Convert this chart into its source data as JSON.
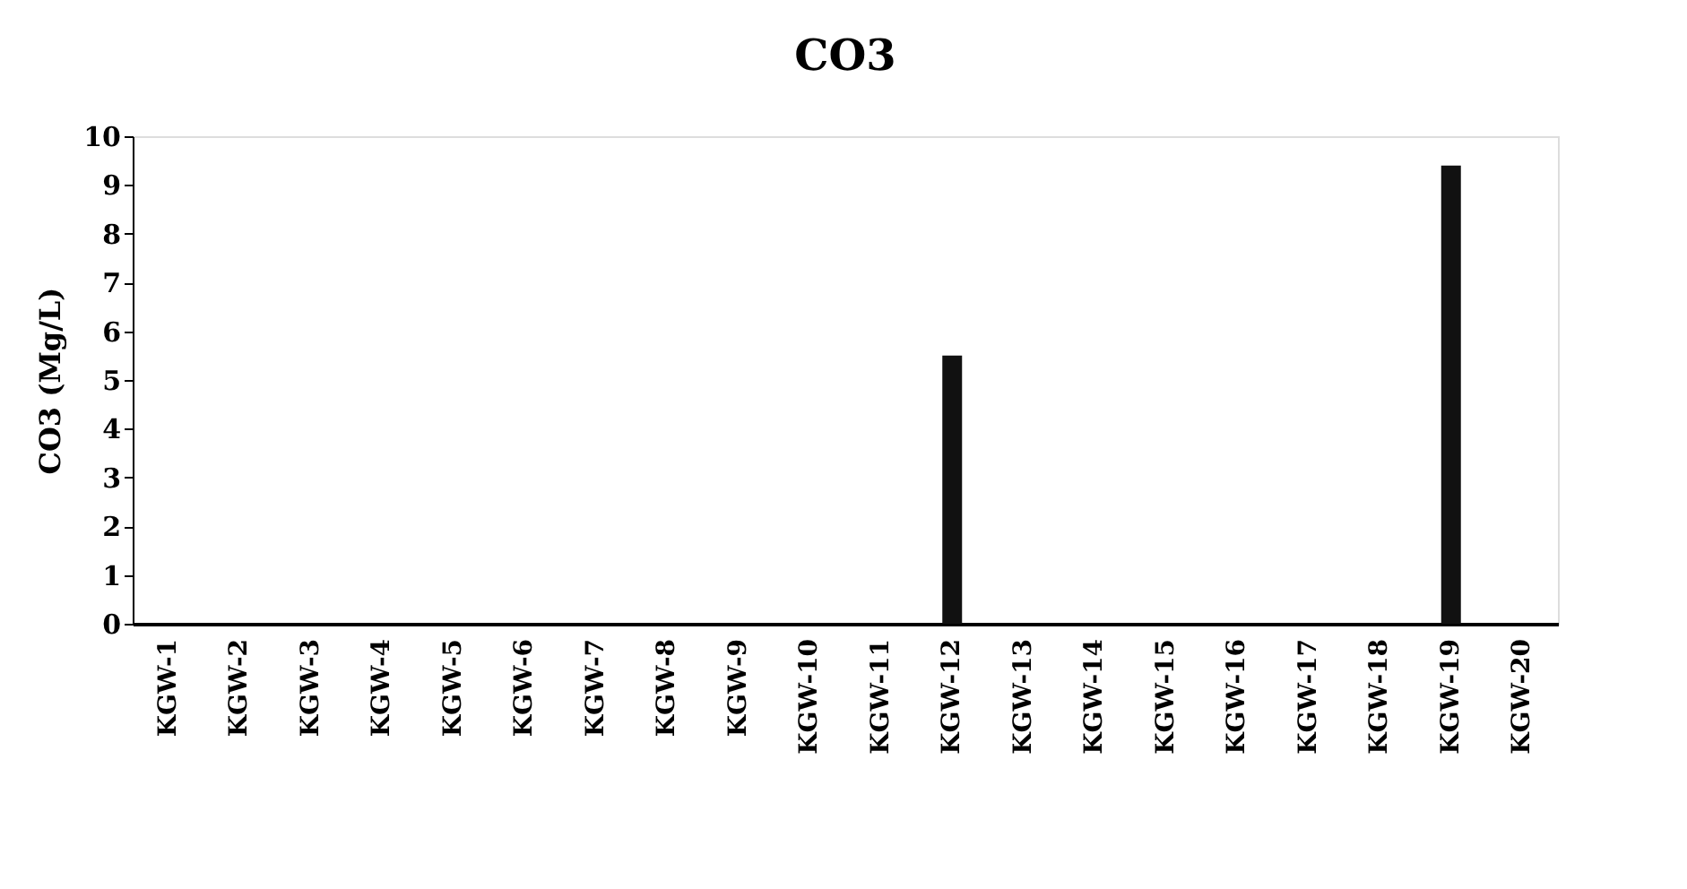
{
  "chart_data": {
    "type": "bar",
    "title": "CO3",
    "ylabel": "CO3 (Mg/L)",
    "categories": [
      "KGW-1",
      "KGW-2",
      "KGW-3",
      "KGW-4",
      "KGW-5",
      "KGW-6",
      "KGW-7",
      "KGW-8",
      "KGW-9",
      "KGW-10",
      "KGW-11",
      "KGW-12",
      "KGW-13",
      "KGW-14",
      "KGW-15",
      "KGW-16",
      "KGW-17",
      "KGW-18",
      "KGW-19",
      "KGW-20"
    ],
    "values": [
      0,
      0,
      0,
      0,
      0,
      0,
      0,
      0,
      0,
      0,
      0,
      5.5,
      0,
      0,
      0,
      0,
      0,
      0,
      9.4,
      0
    ],
    "color": "#111111",
    "ylim": [
      0,
      10
    ],
    "yticks": [
      0,
      1,
      2,
      3,
      4,
      5,
      6,
      7,
      8,
      9,
      10
    ],
    "grid": false
  }
}
